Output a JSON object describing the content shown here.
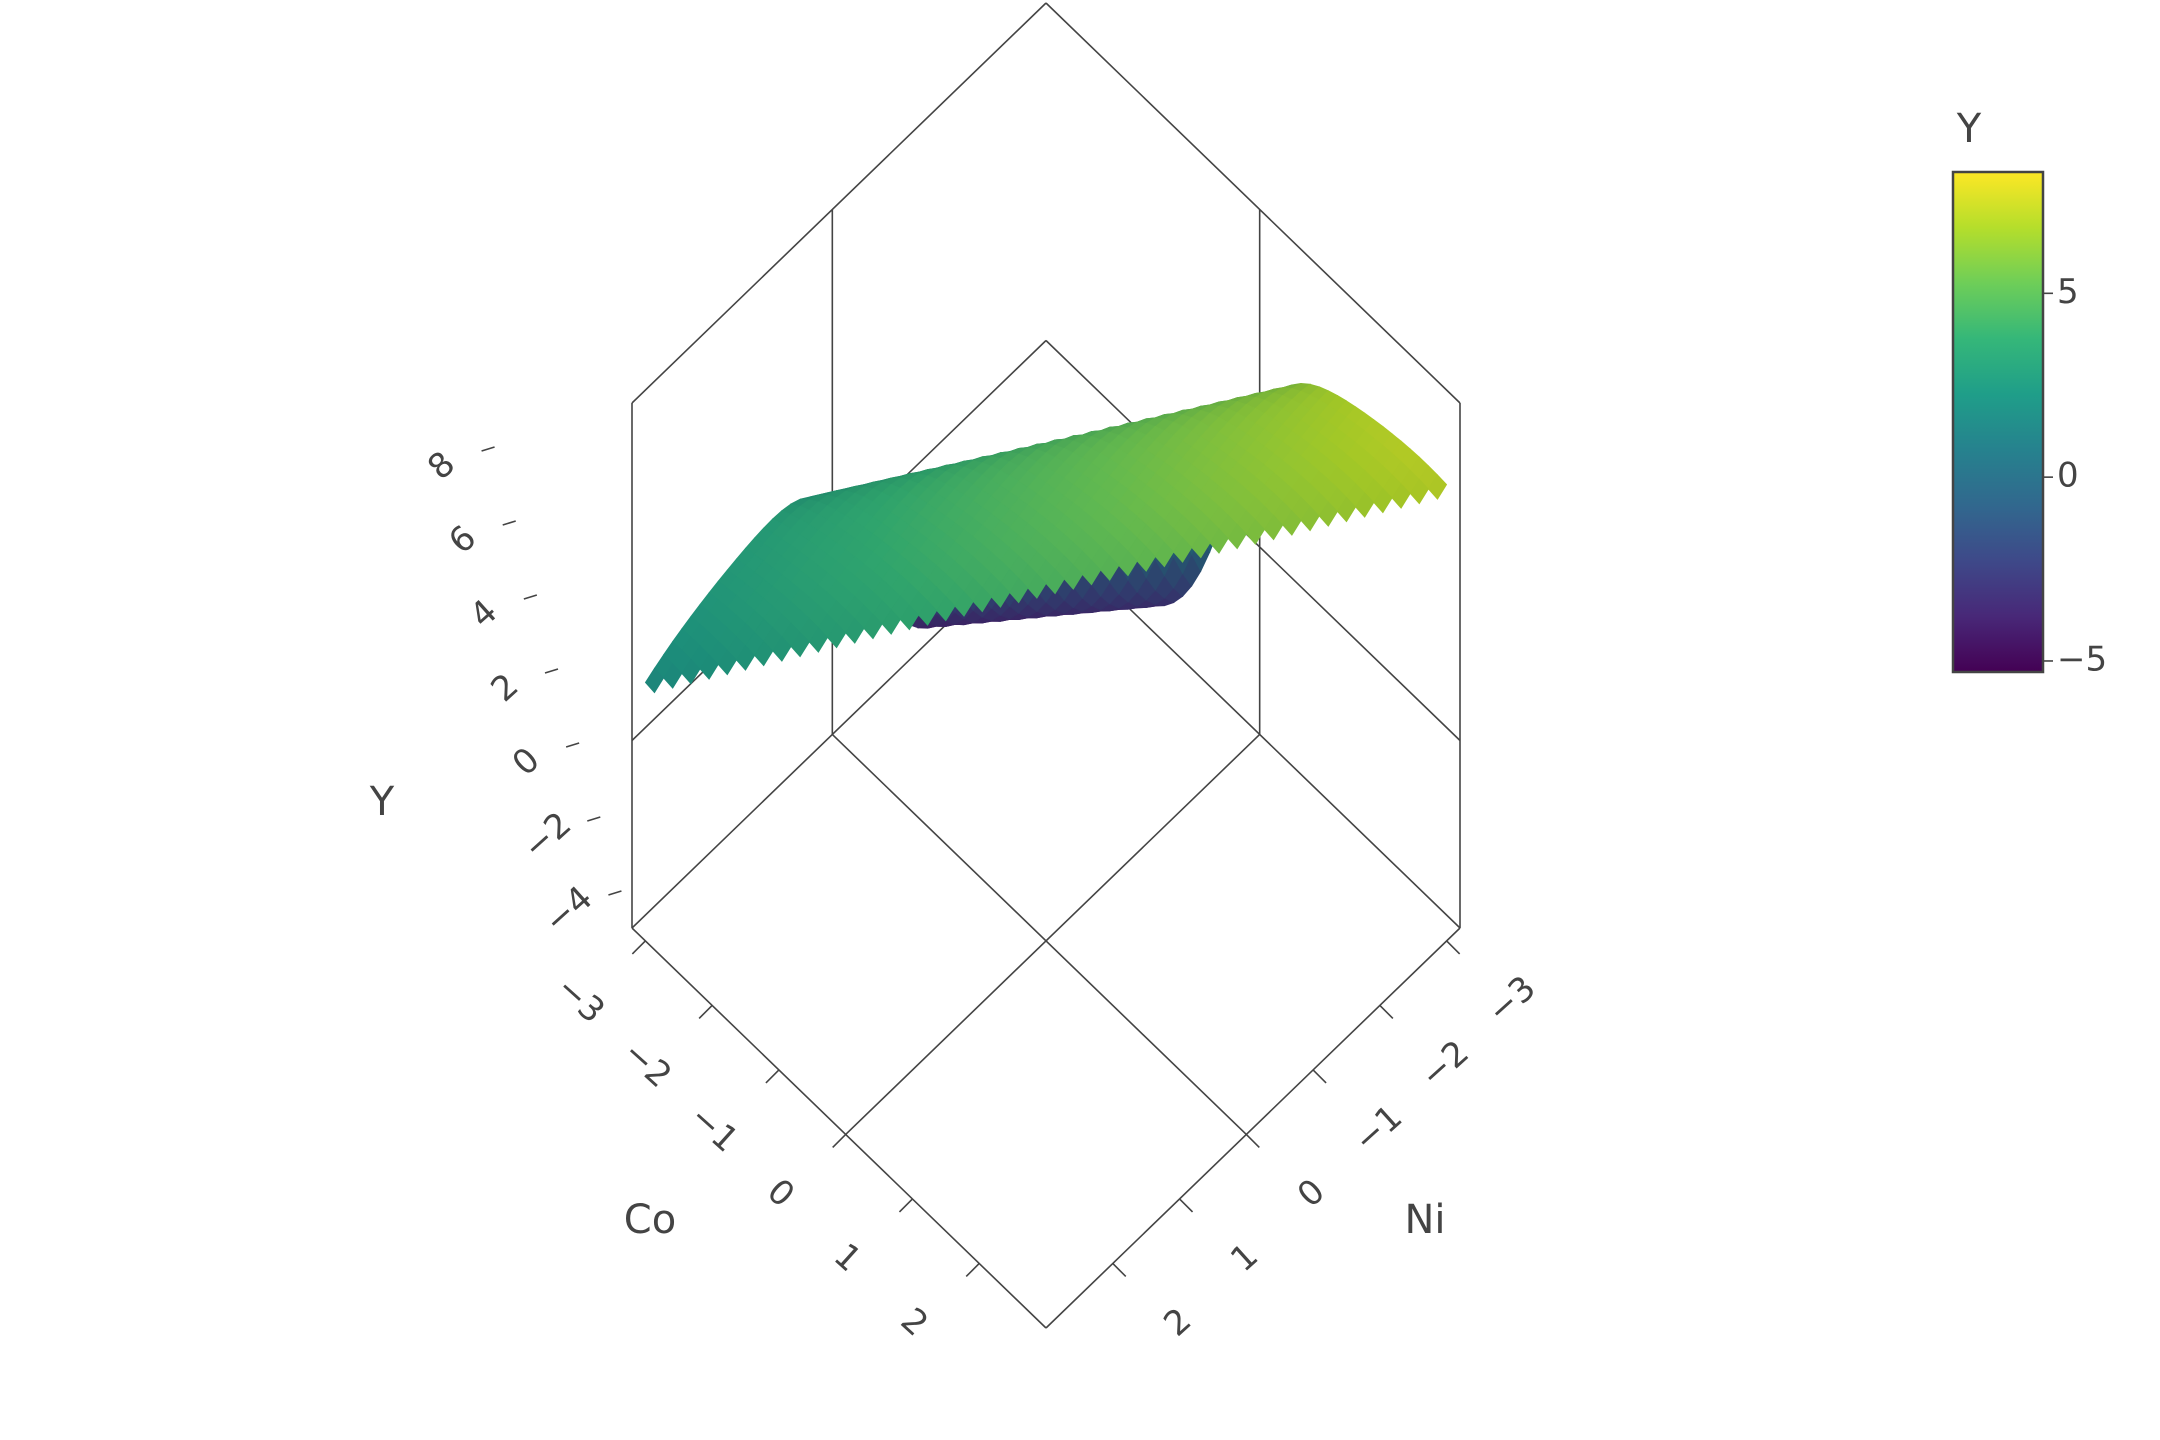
{
  "chart_data": {
    "type": "surface3d",
    "title": "",
    "axes": {
      "x": {
        "label": "Co",
        "range": [
          -3.2,
          3
        ],
        "ticks": [
          -3,
          -2,
          -1,
          0,
          1,
          2
        ]
      },
      "y": {
        "label": "Ni",
        "range": [
          -3.2,
          3
        ],
        "ticks": [
          -3,
          -2,
          -1,
          0,
          1,
          2
        ]
      },
      "z": {
        "label": "Y",
        "range": [
          -5,
          9
        ],
        "ticks": [
          -4,
          -2,
          0,
          2,
          4,
          6,
          8
        ]
      }
    },
    "surface": {
      "x": [
        -3,
        -2,
        -1,
        0,
        1,
        2,
        3
      ],
      "y": [
        -3,
        -2,
        -1,
        0,
        1,
        2,
        3
      ],
      "z_min": -5.3,
      "z_max": 8.3,
      "corner_values": {
        "co_-3_ni_-3": 7.0,
        "co_-3_ni_3": -4.2,
        "co_3_ni_-3": -1.8
      }
    },
    "colorbar": {
      "title": "Y",
      "colorscale": "Viridis",
      "range": [
        -5.3,
        8.3
      ],
      "ticks": [
        -5,
        0,
        5
      ]
    },
    "grid": true,
    "legend": "none"
  },
  "colors": {
    "viridis": [
      "#440154",
      "#482878",
      "#3e4989",
      "#31688e",
      "#26828e",
      "#1f9e89",
      "#35b779",
      "#6ece58",
      "#b5de2b",
      "#fde725"
    ],
    "axis_line": "#444444"
  }
}
